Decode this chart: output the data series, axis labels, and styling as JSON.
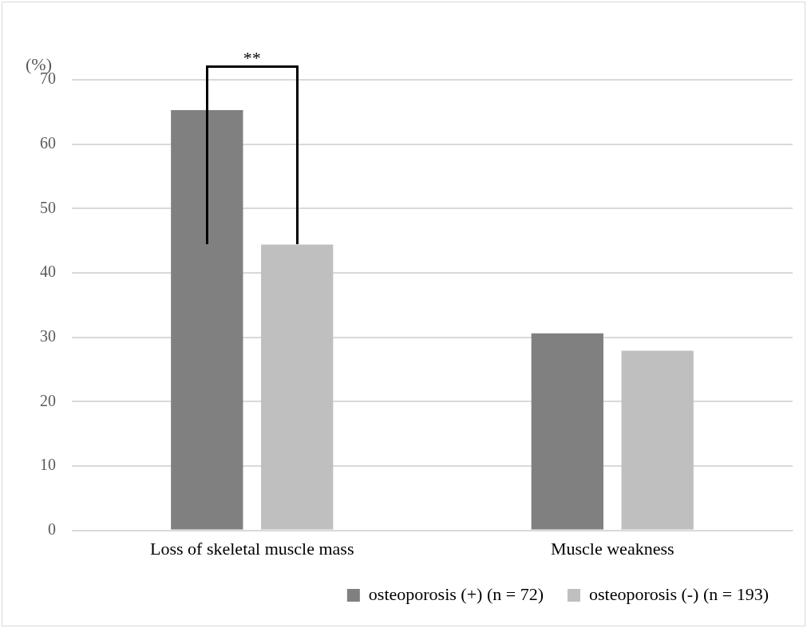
{
  "chart_data": {
    "type": "bar",
    "ylabel": "(%)",
    "categories": [
      "Loss of skeletal muscle mass",
      "Muscle weakness"
    ],
    "series": [
      {
        "name": "osteoporosis (+) (n = 72)",
        "color": "#808080",
        "values": [
          65.3,
          30.6
        ]
      },
      {
        "name": "osteoporosis (-) (n = 193)",
        "color": "#bfbfbf",
        "values": [
          44.4,
          27.9
        ]
      }
    ],
    "ylim": [
      0,
      70
    ],
    "yticks": [
      0,
      10,
      20,
      30,
      40,
      50,
      60,
      70
    ],
    "grid": "y",
    "legend": "bottom",
    "annotations": [
      "**"
    ]
  }
}
